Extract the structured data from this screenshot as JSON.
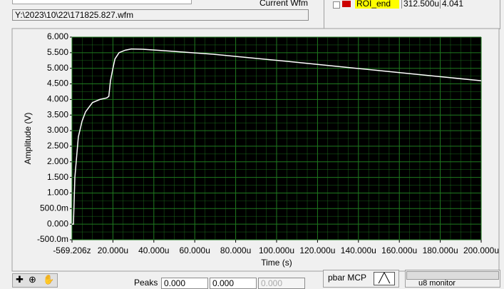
{
  "ui": {
    "current_wfm_label": "Current Wfm",
    "file_path": "Y:\\2023\\10\\22\\171825.827.wfm",
    "roi_name": "ROI_end",
    "roi_time": "312.500u",
    "roi_value": "4.041",
    "peaks_label": "Peaks",
    "peaks": [
      "0.000",
      "0.000",
      "0.000"
    ],
    "pbar_label": "pbar MCP",
    "monitor_label": "u8 monitor"
  },
  "chart_data": {
    "type": "line",
    "x_label": "Time (s)",
    "y_label": "Amplitude (V)",
    "x": [
      0,
      7e-07,
      1.4e-06,
      3.1e-06,
      4.9e-06,
      6.6e-06,
      1e-05,
      1.36e-05,
      1.7e-05,
      1.8e-05,
      1.88e-05,
      2e-05,
      2.1e-05,
      2.3e-05,
      2.6e-05,
      2.9e-05,
      3.45e-05,
      4.8e-05,
      6.9e-05,
      0.000104,
      0.000139,
      0.000174,
      0.0002
    ],
    "series": [
      {
        "color": "#ffffff",
        "values": [
          0,
          0,
          1.5,
          2.8,
          3.3,
          3.6,
          3.9,
          4.0,
          4.05,
          4.1,
          4.6,
          5.0,
          5.3,
          5.5,
          5.58,
          5.62,
          5.61,
          5.55,
          5.45,
          5.23,
          5.0,
          4.77,
          4.6
        ]
      }
    ],
    "xlim": [
      -5.69206e-19,
      0.0002
    ],
    "xticks": [
      {
        "value": -5.69206e-19,
        "label": "-569.206z"
      },
      {
        "value": 2e-05,
        "label": "20.000u"
      },
      {
        "value": 4e-05,
        "label": "40.000u"
      },
      {
        "value": 6e-05,
        "label": "60.000u"
      },
      {
        "value": 8e-05,
        "label": "80.000u"
      },
      {
        "value": 0.0001,
        "label": "100.000u"
      },
      {
        "value": 0.00012,
        "label": "120.000u"
      },
      {
        "value": 0.00014,
        "label": "140.000u"
      },
      {
        "value": 0.00016,
        "label": "160.000u"
      },
      {
        "value": 0.00018,
        "label": "180.000u"
      },
      {
        "value": 0.0002,
        "label": "200.000u"
      }
    ],
    "ylim": [
      -0.5,
      6
    ],
    "yticks": [
      {
        "value": -0.5,
        "label": "-500.0m"
      },
      {
        "value": 0,
        "label": "0.000"
      },
      {
        "value": 0.5,
        "label": "500.0m"
      },
      {
        "value": 1,
        "label": "1.000"
      },
      {
        "value": 1.5,
        "label": "1.500"
      },
      {
        "value": 2,
        "label": "2.000"
      },
      {
        "value": 2.5,
        "label": "2.500"
      },
      {
        "value": 3,
        "label": "3.000"
      },
      {
        "value": 3.5,
        "label": "3.500"
      },
      {
        "value": 4,
        "label": "4.000"
      },
      {
        "value": 4.5,
        "label": "4.500"
      },
      {
        "value": 5,
        "label": "5.000"
      },
      {
        "value": 5.5,
        "label": "5.500"
      },
      {
        "value": 6,
        "label": "6.000"
      }
    ],
    "grid": true,
    "grid_color": "#1f7a1f",
    "plot_background": "#000000"
  }
}
